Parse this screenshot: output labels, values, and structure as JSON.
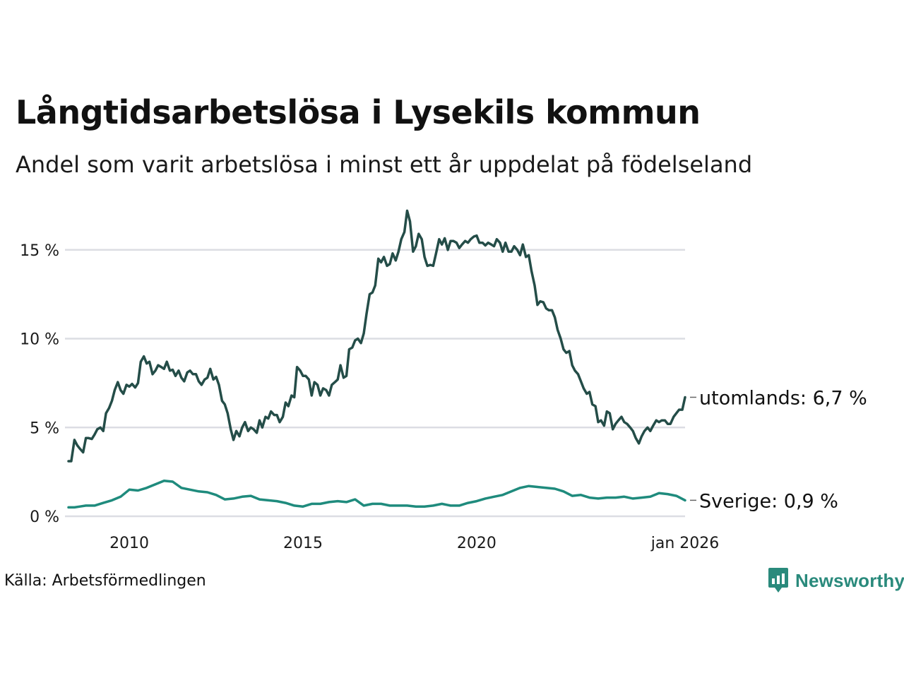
{
  "header": {
    "title": "Långtidsarbetslösa i Lysekils kommun",
    "subtitle": "Andel som varit arbetslösa i minst ett år uppdelat på födelseland"
  },
  "footer": {
    "source": "Källa: Arbetsförmedlingen",
    "brand": "Newsworthy"
  },
  "colors": {
    "utomlands": "#244d48",
    "sverige": "#1f8b7d",
    "grid": "#dcdde3",
    "brand": "#2a8a7c"
  },
  "chart_data": {
    "type": "line",
    "title": "Långtidsarbetslösa i Lysekils kommun",
    "subtitle": "Andel som varit arbetslösa i minst ett år uppdelat på födelseland",
    "xlabel": "",
    "ylabel": "",
    "x_range": [
      2008.25,
      2026.0
    ],
    "ylim": [
      0,
      17.5
    ],
    "grid": true,
    "x_ticks": [
      {
        "value": 2010,
        "label": "2010"
      },
      {
        "value": 2015,
        "label": "2015"
      },
      {
        "value": 2020,
        "label": "2020"
      },
      {
        "value": 2026.0,
        "label": "jan 2026"
      }
    ],
    "y_ticks": [
      {
        "value": 0,
        "label": "0 %"
      },
      {
        "value": 5,
        "label": "5 %"
      },
      {
        "value": 10,
        "label": "10 %"
      },
      {
        "value": 15,
        "label": "15 %"
      }
    ],
    "series": [
      {
        "key": "utomlands",
        "name": "utomlands",
        "end_label": "utomlands: 6,7 %",
        "points": [
          [
            2008.25,
            3.1
          ],
          [
            2008.33,
            3.1
          ],
          [
            2008.42,
            4.3
          ],
          [
            2008.5,
            4.0
          ],
          [
            2008.58,
            3.8
          ],
          [
            2008.67,
            3.6
          ],
          [
            2008.75,
            4.4
          ],
          [
            2008.83,
            4.4
          ],
          [
            2008.92,
            4.35
          ],
          [
            2009.0,
            4.6
          ],
          [
            2009.08,
            4.9
          ],
          [
            2009.17,
            5.0
          ],
          [
            2009.25,
            4.8
          ],
          [
            2009.33,
            5.8
          ],
          [
            2009.42,
            6.1
          ],
          [
            2009.5,
            6.5
          ],
          [
            2009.58,
            7.1
          ],
          [
            2009.67,
            7.55
          ],
          [
            2009.75,
            7.1
          ],
          [
            2009.83,
            6.9
          ],
          [
            2009.92,
            7.4
          ],
          [
            2010.0,
            7.3
          ],
          [
            2010.08,
            7.45
          ],
          [
            2010.17,
            7.25
          ],
          [
            2010.25,
            7.5
          ],
          [
            2010.33,
            8.7
          ],
          [
            2010.42,
            9.0
          ],
          [
            2010.5,
            8.6
          ],
          [
            2010.58,
            8.7
          ],
          [
            2010.67,
            8.0
          ],
          [
            2010.75,
            8.2
          ],
          [
            2010.83,
            8.5
          ],
          [
            2010.92,
            8.4
          ],
          [
            2011.0,
            8.3
          ],
          [
            2011.08,
            8.7
          ],
          [
            2011.17,
            8.2
          ],
          [
            2011.25,
            8.25
          ],
          [
            2011.33,
            7.9
          ],
          [
            2011.42,
            8.2
          ],
          [
            2011.5,
            7.8
          ],
          [
            2011.58,
            7.6
          ],
          [
            2011.67,
            8.1
          ],
          [
            2011.75,
            8.2
          ],
          [
            2011.83,
            8.0
          ],
          [
            2011.92,
            8.0
          ],
          [
            2012.0,
            7.6
          ],
          [
            2012.08,
            7.4
          ],
          [
            2012.17,
            7.7
          ],
          [
            2012.25,
            7.8
          ],
          [
            2012.33,
            8.3
          ],
          [
            2012.42,
            7.7
          ],
          [
            2012.5,
            7.85
          ],
          [
            2012.58,
            7.4
          ],
          [
            2012.67,
            6.5
          ],
          [
            2012.75,
            6.3
          ],
          [
            2012.83,
            5.8
          ],
          [
            2012.92,
            4.9
          ],
          [
            2013.0,
            4.3
          ],
          [
            2013.08,
            4.8
          ],
          [
            2013.17,
            4.5
          ],
          [
            2013.25,
            5.0
          ],
          [
            2013.33,
            5.3
          ],
          [
            2013.42,
            4.8
          ],
          [
            2013.5,
            5.0
          ],
          [
            2013.58,
            4.9
          ],
          [
            2013.67,
            4.7
          ],
          [
            2013.75,
            5.4
          ],
          [
            2013.83,
            5.0
          ],
          [
            2013.92,
            5.6
          ],
          [
            2014.0,
            5.5
          ],
          [
            2014.08,
            5.9
          ],
          [
            2014.17,
            5.7
          ],
          [
            2014.25,
            5.7
          ],
          [
            2014.33,
            5.3
          ],
          [
            2014.42,
            5.6
          ],
          [
            2014.5,
            6.4
          ],
          [
            2014.58,
            6.2
          ],
          [
            2014.67,
            6.8
          ],
          [
            2014.75,
            6.7
          ],
          [
            2014.83,
            8.4
          ],
          [
            2014.92,
            8.2
          ],
          [
            2015.0,
            7.9
          ],
          [
            2015.08,
            7.9
          ],
          [
            2015.17,
            7.7
          ],
          [
            2015.25,
            6.8
          ],
          [
            2015.33,
            7.55
          ],
          [
            2015.42,
            7.4
          ],
          [
            2015.5,
            6.8
          ],
          [
            2015.58,
            7.2
          ],
          [
            2015.67,
            7.1
          ],
          [
            2015.75,
            6.8
          ],
          [
            2015.83,
            7.4
          ],
          [
            2015.92,
            7.55
          ],
          [
            2016.0,
            7.7
          ],
          [
            2016.08,
            8.5
          ],
          [
            2016.17,
            7.8
          ],
          [
            2016.25,
            7.9
          ],
          [
            2016.33,
            9.4
          ],
          [
            2016.42,
            9.5
          ],
          [
            2016.5,
            9.9
          ],
          [
            2016.58,
            10.0
          ],
          [
            2016.67,
            9.75
          ],
          [
            2016.75,
            10.3
          ],
          [
            2016.83,
            11.4
          ],
          [
            2016.92,
            12.5
          ],
          [
            2017.0,
            12.6
          ],
          [
            2017.08,
            13.0
          ],
          [
            2017.17,
            14.5
          ],
          [
            2017.25,
            14.3
          ],
          [
            2017.33,
            14.6
          ],
          [
            2017.42,
            14.1
          ],
          [
            2017.5,
            14.2
          ],
          [
            2017.58,
            14.8
          ],
          [
            2017.67,
            14.4
          ],
          [
            2017.75,
            14.9
          ],
          [
            2017.83,
            15.6
          ],
          [
            2017.92,
            16.0
          ],
          [
            2018.0,
            17.2
          ],
          [
            2018.08,
            16.6
          ],
          [
            2018.17,
            14.9
          ],
          [
            2018.25,
            15.2
          ],
          [
            2018.33,
            15.9
          ],
          [
            2018.42,
            15.6
          ],
          [
            2018.5,
            14.6
          ],
          [
            2018.58,
            14.1
          ],
          [
            2018.67,
            14.15
          ],
          [
            2018.75,
            14.1
          ],
          [
            2018.83,
            14.8
          ],
          [
            2018.92,
            15.6
          ],
          [
            2019.0,
            15.3
          ],
          [
            2019.08,
            15.65
          ],
          [
            2019.17,
            15.0
          ],
          [
            2019.25,
            15.5
          ],
          [
            2019.33,
            15.5
          ],
          [
            2019.42,
            15.4
          ],
          [
            2019.5,
            15.1
          ],
          [
            2019.58,
            15.3
          ],
          [
            2019.67,
            15.5
          ],
          [
            2019.75,
            15.4
          ],
          [
            2019.83,
            15.6
          ],
          [
            2019.92,
            15.75
          ],
          [
            2020.0,
            15.8
          ],
          [
            2020.08,
            15.4
          ],
          [
            2020.17,
            15.4
          ],
          [
            2020.25,
            15.25
          ],
          [
            2020.33,
            15.4
          ],
          [
            2020.42,
            15.3
          ],
          [
            2020.5,
            15.2
          ],
          [
            2020.58,
            15.6
          ],
          [
            2020.67,
            15.4
          ],
          [
            2020.75,
            14.9
          ],
          [
            2020.83,
            15.4
          ],
          [
            2020.92,
            14.9
          ],
          [
            2021.0,
            14.9
          ],
          [
            2021.08,
            15.2
          ],
          [
            2021.17,
            15.0
          ],
          [
            2021.25,
            14.7
          ],
          [
            2021.33,
            15.3
          ],
          [
            2021.42,
            14.6
          ],
          [
            2021.5,
            14.7
          ],
          [
            2021.58,
            13.8
          ],
          [
            2021.67,
            13.0
          ],
          [
            2021.75,
            11.9
          ],
          [
            2021.83,
            12.1
          ],
          [
            2021.92,
            12.05
          ],
          [
            2022.0,
            11.7
          ],
          [
            2022.08,
            11.6
          ],
          [
            2022.17,
            11.6
          ],
          [
            2022.25,
            11.2
          ],
          [
            2022.33,
            10.5
          ],
          [
            2022.42,
            10.0
          ],
          [
            2022.5,
            9.4
          ],
          [
            2022.58,
            9.2
          ],
          [
            2022.67,
            9.3
          ],
          [
            2022.75,
            8.5
          ],
          [
            2022.83,
            8.2
          ],
          [
            2022.92,
            8.0
          ],
          [
            2023.0,
            7.6
          ],
          [
            2023.08,
            7.2
          ],
          [
            2023.17,
            6.9
          ],
          [
            2023.25,
            7.0
          ],
          [
            2023.33,
            6.3
          ],
          [
            2023.42,
            6.2
          ],
          [
            2023.5,
            5.3
          ],
          [
            2023.58,
            5.4
          ],
          [
            2023.67,
            5.1
          ],
          [
            2023.75,
            5.9
          ],
          [
            2023.83,
            5.8
          ],
          [
            2023.92,
            4.9
          ],
          [
            2024.0,
            5.2
          ],
          [
            2024.08,
            5.4
          ],
          [
            2024.17,
            5.6
          ],
          [
            2024.25,
            5.3
          ],
          [
            2024.33,
            5.2
          ],
          [
            2024.42,
            5.0
          ],
          [
            2024.5,
            4.8
          ],
          [
            2024.58,
            4.4
          ],
          [
            2024.67,
            4.1
          ],
          [
            2024.75,
            4.5
          ],
          [
            2024.83,
            4.8
          ],
          [
            2024.92,
            5.0
          ],
          [
            2025.0,
            4.8
          ],
          [
            2025.08,
            5.1
          ],
          [
            2025.17,
            5.4
          ],
          [
            2025.25,
            5.3
          ],
          [
            2025.33,
            5.4
          ],
          [
            2025.42,
            5.4
          ],
          [
            2025.5,
            5.2
          ],
          [
            2025.58,
            5.2
          ],
          [
            2025.67,
            5.6
          ],
          [
            2025.75,
            5.8
          ],
          [
            2025.83,
            6.0
          ],
          [
            2025.92,
            6.0
          ],
          [
            2026.0,
            6.7
          ]
        ]
      },
      {
        "key": "sverige",
        "name": "Sverige",
        "end_label": "Sverige: 0,9 %",
        "points": [
          [
            2008.25,
            0.5
          ],
          [
            2008.42,
            0.5
          ],
          [
            2008.58,
            0.55
          ],
          [
            2008.75,
            0.6
          ],
          [
            2009.0,
            0.6
          ],
          [
            2009.25,
            0.75
          ],
          [
            2009.5,
            0.9
          ],
          [
            2009.75,
            1.1
          ],
          [
            2010.0,
            1.5
          ],
          [
            2010.25,
            1.45
          ],
          [
            2010.5,
            1.6
          ],
          [
            2010.75,
            1.8
          ],
          [
            2011.0,
            2.0
          ],
          [
            2011.25,
            1.95
          ],
          [
            2011.5,
            1.6
          ],
          [
            2011.75,
            1.5
          ],
          [
            2012.0,
            1.4
          ],
          [
            2012.25,
            1.35
          ],
          [
            2012.5,
            1.2
          ],
          [
            2012.75,
            0.95
          ],
          [
            2013.0,
            1.0
          ],
          [
            2013.25,
            1.1
          ],
          [
            2013.5,
            1.15
          ],
          [
            2013.75,
            0.95
          ],
          [
            2014.0,
            0.9
          ],
          [
            2014.25,
            0.85
          ],
          [
            2014.5,
            0.75
          ],
          [
            2014.75,
            0.6
          ],
          [
            2015.0,
            0.55
          ],
          [
            2015.25,
            0.7
          ],
          [
            2015.5,
            0.7
          ],
          [
            2015.75,
            0.8
          ],
          [
            2016.0,
            0.85
          ],
          [
            2016.25,
            0.8
          ],
          [
            2016.5,
            0.95
          ],
          [
            2016.75,
            0.6
          ],
          [
            2017.0,
            0.7
          ],
          [
            2017.25,
            0.7
          ],
          [
            2017.5,
            0.6
          ],
          [
            2017.75,
            0.6
          ],
          [
            2018.0,
            0.6
          ],
          [
            2018.25,
            0.55
          ],
          [
            2018.5,
            0.55
          ],
          [
            2018.75,
            0.6
          ],
          [
            2019.0,
            0.7
          ],
          [
            2019.25,
            0.6
          ],
          [
            2019.5,
            0.6
          ],
          [
            2019.75,
            0.75
          ],
          [
            2020.0,
            0.85
          ],
          [
            2020.25,
            1.0
          ],
          [
            2020.5,
            1.1
          ],
          [
            2020.75,
            1.2
          ],
          [
            2021.0,
            1.4
          ],
          [
            2021.25,
            1.6
          ],
          [
            2021.5,
            1.7
          ],
          [
            2021.75,
            1.65
          ],
          [
            2022.0,
            1.6
          ],
          [
            2022.25,
            1.55
          ],
          [
            2022.5,
            1.4
          ],
          [
            2022.75,
            1.15
          ],
          [
            2023.0,
            1.2
          ],
          [
            2023.25,
            1.05
          ],
          [
            2023.5,
            1.0
          ],
          [
            2023.75,
            1.05
          ],
          [
            2024.0,
            1.05
          ],
          [
            2024.25,
            1.1
          ],
          [
            2024.5,
            1.0
          ],
          [
            2024.75,
            1.05
          ],
          [
            2025.0,
            1.1
          ],
          [
            2025.25,
            1.3
          ],
          [
            2025.5,
            1.25
          ],
          [
            2025.75,
            1.15
          ],
          [
            2026.0,
            0.9
          ]
        ]
      }
    ]
  }
}
